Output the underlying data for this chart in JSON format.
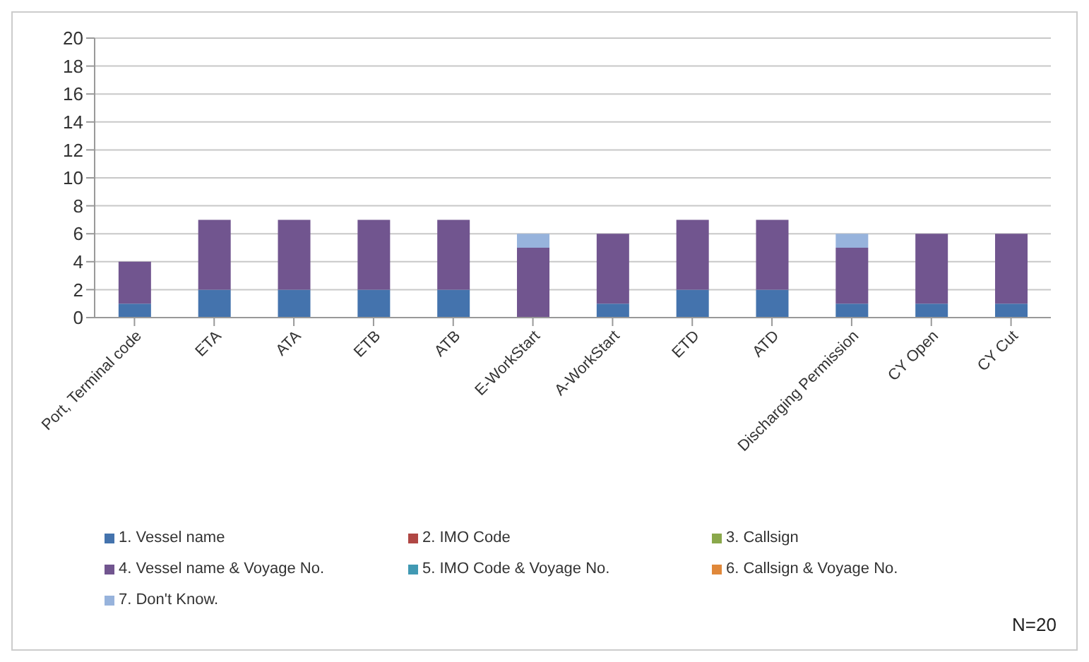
{
  "chart_data": {
    "type": "bar",
    "stacked": true,
    "categories": [
      "Port, Terminal code",
      "ETA",
      "ATA",
      "ETB",
      "ATB",
      "E-WorkStart",
      "A-WorkStart",
      "ETD",
      "ATD",
      "Discharging Permission",
      "CY Open",
      "CY Cut"
    ],
    "series": [
      {
        "name": "1. Vessel name",
        "color": "#4473ad",
        "values": [
          1,
          2,
          2,
          2,
          2,
          0,
          1,
          2,
          2,
          1,
          1,
          1
        ]
      },
      {
        "name": "2. IMO Code",
        "color": "#b04744",
        "values": [
          0,
          0,
          0,
          0,
          0,
          0,
          0,
          0,
          0,
          0,
          0,
          0
        ]
      },
      {
        "name": "3. Callsign",
        "color": "#8aa84b",
        "values": [
          0,
          0,
          0,
          0,
          0,
          0,
          0,
          0,
          0,
          0,
          0,
          0
        ]
      },
      {
        "name": "4. Vessel name & Voyage No.",
        "color": "#71558f",
        "values": [
          3,
          5,
          5,
          5,
          5,
          5,
          5,
          5,
          5,
          4,
          5,
          5
        ]
      },
      {
        "name": "5. IMO Code & Voyage No.",
        "color": "#4199b3",
        "values": [
          0,
          0,
          0,
          0,
          0,
          0,
          0,
          0,
          0,
          0,
          0,
          0
        ]
      },
      {
        "name": "6. Callsign & Voyage No.",
        "color": "#e0883a",
        "values": [
          0,
          0,
          0,
          0,
          0,
          0,
          0,
          0,
          0,
          0,
          0,
          0
        ]
      },
      {
        "name": "7. Don't Know.",
        "color": "#97b3dc",
        "values": [
          0,
          0,
          0,
          0,
          0,
          1,
          0,
          0,
          0,
          1,
          0,
          0
        ]
      }
    ],
    "ylim": [
      0,
      20
    ],
    "yticks": [
      0,
      2,
      4,
      6,
      8,
      10,
      12,
      14,
      16,
      18,
      20
    ],
    "grid": "y",
    "legend": "bottom",
    "annotations": [
      "N=20"
    ]
  }
}
